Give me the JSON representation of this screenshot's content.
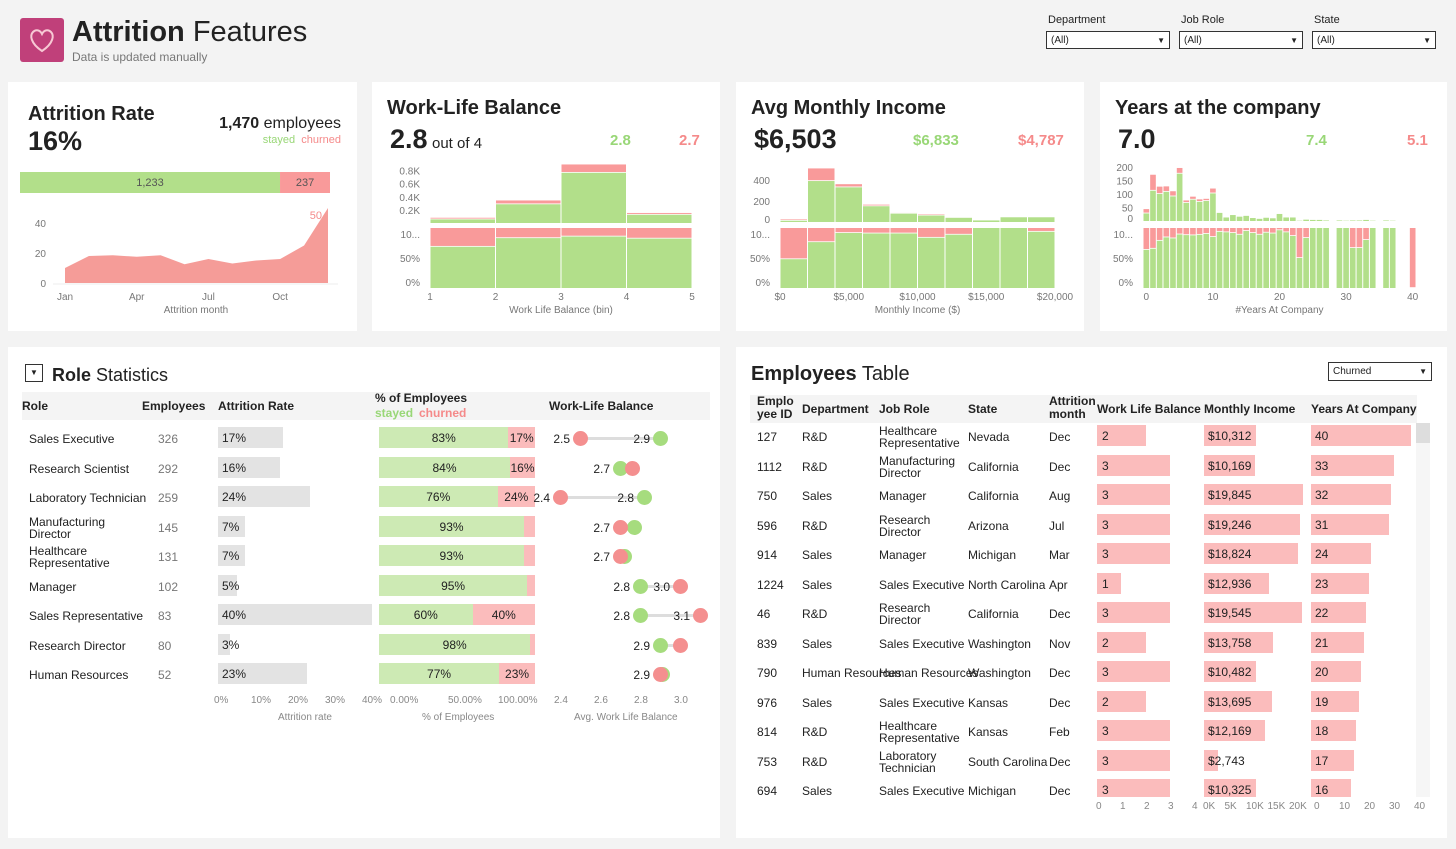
{
  "header": {
    "title_bold": "Attrition",
    "title_rest": "Features",
    "subtitle": "Data is updated manually",
    "logo_icon": "heart-icon"
  },
  "filters": [
    {
      "label": "Department",
      "value": "(All)"
    },
    {
      "label": "Job Role",
      "value": "(All)"
    },
    {
      "label": "State",
      "value": "(All)"
    }
  ],
  "colors": {
    "stayed": "#b2df8a",
    "churned": "#f99a9a",
    "stayed_light": "#cdeab4",
    "churned_light": "#fbbcbc",
    "brand": "#c0407a"
  },
  "attrition": {
    "title": "Attrition Rate",
    "rate": "16%",
    "employees_count": "1,470",
    "employees_word": "employees",
    "stayed_label": "stayed",
    "churned_label": "churned",
    "stayed": 1233,
    "churned": 237,
    "stayed_text": "1,233",
    "churned_text": "237",
    "xlabel": "Attrition month",
    "last_label": "50"
  },
  "wlb": {
    "title": "Work-Life Balance",
    "value": "2.8",
    "suffix": "out of 4",
    "stayed_value": "2.8",
    "churned_value": "2.7",
    "xlabel": "Work Life Balance (bin)"
  },
  "income": {
    "title": "Avg Monthly Income",
    "value": "$6,503",
    "stayed_value": "$6,833",
    "churned_value": "$4,787",
    "xlabel": "Monthly Income ($)"
  },
  "years": {
    "title": "Years at the company",
    "value": "7.0",
    "stayed_value": "7.4",
    "churned_value": "5.1",
    "xlabel": "#Years At Company"
  },
  "chart_data": [
    {
      "type": "area",
      "title": "Attrition month",
      "x": [
        "Jan",
        "Feb",
        "Mar",
        "Apr",
        "May",
        "Jun",
        "Jul",
        "Aug",
        "Sep",
        "Oct",
        "Nov",
        "Dec"
      ],
      "values": [
        10,
        18,
        18.5,
        17.5,
        18.5,
        12.5,
        16,
        13,
        15,
        16,
        25,
        50
      ],
      "xticks": [
        "Jan",
        "Apr",
        "Jul",
        "Oct"
      ],
      "yticks": [
        0,
        20,
        40
      ]
    },
    {
      "type": "bar",
      "title": "Work Life Balance (bin)",
      "bins": [
        [
          1,
          2,
          55,
          25
        ],
        [
          2,
          3,
          286,
          58
        ],
        [
          3,
          4,
          766,
          127
        ],
        [
          4,
          5,
          126,
          27
        ]
      ],
      "ymax": 900,
      "yticks": [
        [
          "0.2K",
          200
        ],
        [
          "0.4K",
          400
        ],
        [
          "0.6K",
          600
        ],
        [
          "0.8K",
          800
        ]
      ],
      "xticks": [
        [
          "1",
          1
        ],
        [
          "2",
          2
        ],
        [
          "3",
          3
        ],
        [
          "4",
          4
        ],
        [
          "5",
          5
        ]
      ],
      "domain": [
        1,
        5
      ]
    },
    {
      "type": "bar",
      "title": "Monthly Income ($)",
      "bins": [
        [
          0,
          2000,
          12,
          13
        ],
        [
          2000,
          4000,
          390,
          120
        ],
        [
          4000,
          6000,
          330,
          30
        ],
        [
          6000,
          8000,
          150,
          15
        ],
        [
          8000,
          10000,
          80,
          8
        ],
        [
          10000,
          12000,
          62,
          12
        ],
        [
          12000,
          14000,
          40,
          5
        ],
        [
          14000,
          16000,
          15,
          0
        ],
        [
          16000,
          18000,
          45,
          0
        ],
        [
          18000,
          20000,
          45,
          3
        ]
      ],
      "ymax": 552,
      "yticks": [
        [
          "0",
          0
        ],
        [
          "200",
          200
        ],
        [
          "400",
          400
        ]
      ],
      "xticks": [
        [
          "$0",
          0
        ],
        [
          "$5,000",
          5000
        ],
        [
          "$10,000",
          10000
        ],
        [
          "$15,000",
          15000
        ],
        [
          "$20,000",
          20000
        ]
      ],
      "domain": [
        0,
        20000
      ]
    },
    {
      "type": "bar",
      "title": "#Years At Company",
      "bins": [
        [
          0,
          28,
          16
        ],
        [
          1,
          112,
          59
        ],
        [
          2,
          100,
          27
        ],
        [
          3,
          108,
          20
        ],
        [
          4,
          91,
          19
        ],
        [
          5,
          175,
          21
        ],
        [
          6,
          67,
          9
        ],
        [
          7,
          79,
          11
        ],
        [
          8,
          71,
          9
        ],
        [
          9,
          74,
          8
        ],
        [
          10,
          102,
          18
        ],
        [
          11,
          30,
          2
        ],
        [
          12,
          13,
          1
        ],
        [
          13,
          22,
          2
        ],
        [
          14,
          16,
          2
        ],
        [
          15,
          19,
          1
        ],
        [
          16,
          11,
          1
        ],
        [
          17,
          8,
          1
        ],
        [
          18,
          12,
          1
        ],
        [
          19,
          10,
          1
        ],
        [
          20,
          26,
          1
        ],
        [
          21,
          13,
          1
        ],
        [
          22,
          13,
          2
        ],
        [
          23,
          1,
          1
        ],
        [
          24,
          5,
          1
        ],
        [
          25,
          4,
          0
        ],
        [
          26,
          4,
          0
        ],
        [
          27,
          2,
          0
        ],
        [
          29,
          2,
          0
        ],
        [
          30,
          1,
          0
        ],
        [
          31,
          2,
          1
        ],
        [
          32,
          2,
          1
        ],
        [
          33,
          4,
          1
        ],
        [
          34,
          1,
          0
        ],
        [
          36,
          2,
          0
        ],
        [
          37,
          1,
          0
        ],
        [
          40,
          0,
          1
        ]
      ],
      "ymax": 207,
      "yticks": [
        [
          "0",
          0
        ],
        [
          "50",
          50
        ],
        [
          "100",
          100
        ],
        [
          "150",
          150
        ],
        [
          "200",
          200
        ]
      ],
      "xticks": [
        [
          "0",
          0
        ],
        [
          "10",
          10
        ],
        [
          "20",
          20
        ],
        [
          "30",
          30
        ],
        [
          "40",
          40
        ]
      ],
      "domain": [
        -0.5,
        40.5
      ]
    }
  ],
  "pct_ticks": {
    "top": "10...",
    "mid": "50%",
    "zero": "0%"
  },
  "roles": {
    "title_bold": "Role",
    "title_rest": "Statistics",
    "headers": {
      "role": "Role",
      "employees": "Employees",
      "attrition": "Attrition Rate",
      "pct": "% of Employees",
      "stayed": "stayed",
      "churned": "churned",
      "wlb": "Work-Life Balance"
    },
    "rows": [
      {
        "role": "Sales Executive",
        "employees": "326",
        "rate": 17,
        "rate_text": "17%",
        "stayed_text": "83%",
        "churned_text": "17%",
        "wlb_stayed": 2.9,
        "wlb_churned": 2.5,
        "label_low": "2.5",
        "label_high": "2.9"
      },
      {
        "role": "Research Scientist",
        "employees": "292",
        "rate": 16,
        "rate_text": "16%",
        "stayed_text": "84%",
        "churned_text": "16%",
        "wlb_stayed": 2.7,
        "wlb_churned": 2.76,
        "label_low": "2.7",
        "label_high": null
      },
      {
        "role": "Laboratory Technician",
        "employees": "259",
        "rate": 24,
        "rate_text": "24%",
        "stayed_text": "76%",
        "churned_text": "24%",
        "wlb_stayed": 2.82,
        "wlb_churned": 2.4,
        "label_low": "2.4",
        "label_high": "2.8"
      },
      {
        "role": "Manufacturing Director",
        "employees": "145",
        "rate": 7,
        "rate_text": "7%",
        "stayed_text": "93%",
        "churned_text": "",
        "wlb_stayed": 2.77,
        "wlb_churned": 2.7,
        "label_low": "2.7",
        "label_high": null
      },
      {
        "role": "Healthcare Representative",
        "employees": "131",
        "rate": 7,
        "rate_text": "7%",
        "stayed_text": "93%",
        "churned_text": "",
        "wlb_stayed": 2.72,
        "wlb_churned": 2.7,
        "label_low": "2.7",
        "label_high": null
      },
      {
        "role": "Manager",
        "employees": "102",
        "rate": 5,
        "rate_text": "5%",
        "stayed_text": "95%",
        "churned_text": "",
        "wlb_stayed": 2.8,
        "wlb_churned": 3.0,
        "label_low": "2.8",
        "label_high": "3.0"
      },
      {
        "role": "Sales Representative",
        "employees": "83",
        "rate": 40,
        "rate_text": "40%",
        "stayed_text": "60%",
        "churned_text": "40%",
        "wlb_stayed": 2.8,
        "wlb_churned": 3.1,
        "label_low": "2.8",
        "label_high": "3.1"
      },
      {
        "role": "Research Director",
        "employees": "80",
        "rate": 3,
        "rate_text": "3%",
        "stayed_text": "98%",
        "churned_text": "",
        "wlb_stayed": 2.9,
        "wlb_churned": 3.0,
        "label_low": "2.9",
        "label_high": null
      },
      {
        "role": "Human Resources",
        "employees": "52",
        "rate": 23,
        "rate_text": "23%",
        "stayed_text": "77%",
        "churned_text": "23%",
        "wlb_stayed": 2.91,
        "wlb_churned": 2.9,
        "label_low": "2.9",
        "label_high": null
      }
    ],
    "axis_attr": [
      "0%",
      "10%",
      "20%",
      "30%",
      "40%"
    ],
    "axis_attr_label": "Attrition rate",
    "axis_pct": [
      "0.00%",
      "50.00%",
      "100.00%"
    ],
    "axis_pct_label": "% of Employees",
    "axis_wlb": [
      "2.4",
      "2.6",
      "2.8",
      "3.0"
    ],
    "axis_wlb_label": "Avg. Work Life Balance"
  },
  "employees": {
    "title_bold": "Employees",
    "title_rest": "Table",
    "filter_value": "Churned",
    "headers": [
      "Emplo yee ID",
      "Department",
      "Job Role",
      "State",
      "Attrition month",
      "Work Life Balance",
      "Monthly Income",
      "Years At Company"
    ],
    "rows": [
      [
        "127",
        "R&D",
        "Healthcare Representative",
        "Nevada",
        "Dec",
        2,
        10312,
        "$10,312",
        40
      ],
      [
        "1112",
        "R&D",
        "Manufacturing Director",
        "California",
        "Dec",
        3,
        10169,
        "$10,169",
        33
      ],
      [
        "750",
        "Sales",
        "Manager",
        "California",
        "Aug",
        3,
        19845,
        "$19,845",
        32
      ],
      [
        "596",
        "R&D",
        "Research Director",
        "Arizona",
        "Jul",
        3,
        19246,
        "$19,246",
        31
      ],
      [
        "914",
        "Sales",
        "Manager",
        "Michigan",
        "Mar",
        3,
        18824,
        "$18,824",
        24
      ],
      [
        "1224",
        "Sales",
        "Sales Executive",
        "North Carolina",
        "Apr",
        1,
        12936,
        "$12,936",
        23
      ],
      [
        "46",
        "R&D",
        "Research Director",
        "California",
        "Dec",
        3,
        19545,
        "$19,545",
        22
      ],
      [
        "839",
        "Sales",
        "Sales Executive",
        "Washington",
        "Nov",
        2,
        13758,
        "$13,758",
        21
      ],
      [
        "790",
        "Human Resources",
        "Human Resources",
        "Washington",
        "Dec",
        3,
        10482,
        "$10,482",
        20
      ],
      [
        "976",
        "Sales",
        "Sales Executive",
        "Kansas",
        "Dec",
        2,
        13695,
        "$13,695",
        19
      ],
      [
        "814",
        "R&D",
        "Healthcare Representative",
        "Kansas",
        "Feb",
        3,
        12169,
        "$12,169",
        18
      ],
      [
        "753",
        "R&D",
        "Laboratory Technician",
        "South Carolina",
        "Dec",
        3,
        2743,
        "$2,743",
        17
      ],
      [
        "694",
        "Sales",
        "Sales Executive",
        "Michigan",
        "Dec",
        3,
        10325,
        "$10,325",
        16
      ]
    ],
    "axis_wlb": [
      "0",
      "1",
      "2",
      "3",
      "4"
    ],
    "axis_income": [
      "0K",
      "5K",
      "10K",
      "15K",
      "20K"
    ],
    "axis_years": [
      "0",
      "10",
      "20",
      "30",
      "40"
    ]
  }
}
